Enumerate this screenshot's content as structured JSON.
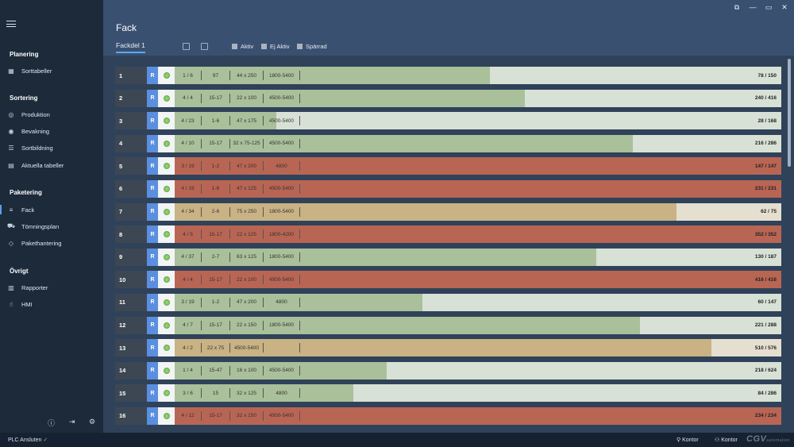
{
  "colors": {
    "green_fill": "#a9c09a",
    "green_bg": "#d8e1d5",
    "red_fill": "#b96554",
    "red_bg": "#b96554",
    "tan_fill": "#c9b283",
    "tan_bg": "#e5dfd0"
  },
  "sidebar": {
    "sections": [
      {
        "title": "Planering",
        "items": [
          {
            "label": "Sorttabeller",
            "icon": "table-icon"
          }
        ]
      },
      {
        "title": "Sortering",
        "items": [
          {
            "label": "Produktion",
            "icon": "check-circle-icon"
          },
          {
            "label": "Bevakning",
            "icon": "eye-icon"
          },
          {
            "label": "Sortbildning",
            "icon": "sort-icon"
          },
          {
            "label": "Aktuella tabeller",
            "icon": "tables-icon"
          }
        ]
      },
      {
        "title": "Paketering",
        "items": [
          {
            "label": "Fack",
            "icon": "list-icon"
          },
          {
            "label": "Tömningsplan",
            "icon": "truck-icon"
          },
          {
            "label": "Pakethantering",
            "icon": "package-icon"
          }
        ]
      },
      {
        "title": "Övrigt",
        "items": [
          {
            "label": "Rapporter",
            "icon": "report-icon"
          },
          {
            "label": "HMI",
            "icon": "hand-icon"
          }
        ]
      }
    ]
  },
  "header": {
    "title": "Fack",
    "tab": "Fackdel 1",
    "legend": [
      "Aktiv",
      "Ej Aktiv",
      "Spärrad"
    ]
  },
  "rows": [
    {
      "num": "1",
      "r": "R",
      "c1": "1 / 6",
      "c2": "97",
      "c3": "44 x 250",
      "c4": "1800-5400",
      "count": "78 / 150",
      "status": "green",
      "fill": 0.52
    },
    {
      "num": "2",
      "r": "R",
      "c1": "4 / 4",
      "c2": "15-17",
      "c3": "22 x 100",
      "c4": "4500-5400",
      "count": "240 / 416",
      "status": "green",
      "fill": 0.577
    },
    {
      "num": "3",
      "r": "R",
      "c1": "4 / 23",
      "c2": "1-6",
      "c3": "47 x 175",
      "c4": "4500-5400",
      "count": "28 / 168",
      "status": "green",
      "fill": 0.167
    },
    {
      "num": "4",
      "r": "R",
      "c1": "4 / 10",
      "c2": "15-17",
      "c3": "32 x 75-125",
      "c4": "4500-5400",
      "count": "216 / 286",
      "status": "green",
      "fill": 0.755
    },
    {
      "num": "5",
      "r": "R",
      "c1": "3 / 19",
      "c2": "1-2",
      "c3": "47 x 200",
      "c4": "4800",
      "count": "147 / 147",
      "status": "red",
      "fill": 1.0
    },
    {
      "num": "6",
      "r": "R",
      "c1": "4 / 19",
      "c2": "1-6",
      "c3": "47 x 125",
      "c4": "4500-5400",
      "count": "231 / 231",
      "status": "red",
      "fill": 1.0
    },
    {
      "num": "7",
      "r": "R",
      "c1": "4 / 34",
      "c2": "2-6",
      "c3": "75 x 250",
      "c4": "1800-5400",
      "count": "62 / 75",
      "status": "tan",
      "fill": 0.827
    },
    {
      "num": "8",
      "r": "R",
      "c1": "4 / 5",
      "c2": "15-17",
      "c3": "22 x 125",
      "c4": "1800-4200",
      "count": "352 / 352",
      "status": "red",
      "fill": 1.0
    },
    {
      "num": "9",
      "r": "R",
      "c1": "4 / 37",
      "c2": "2-7",
      "c3": "63 x 125",
      "c4": "1800-5400",
      "count": "130 / 187",
      "status": "green",
      "fill": 0.695
    },
    {
      "num": "10",
      "r": "R",
      "c1": "4 / 4",
      "c2": "15-17",
      "c3": "22 x 100",
      "c4": "4500-5400",
      "count": "416 / 416",
      "status": "red",
      "fill": 1.0
    },
    {
      "num": "11",
      "r": "R",
      "c1": "3 / 19",
      "c2": "1-2",
      "c3": "47 x 200",
      "c4": "4800",
      "count": "60 / 147",
      "status": "green",
      "fill": 0.408
    },
    {
      "num": "12",
      "r": "R",
      "c1": "4 / 7",
      "c2": "15-17",
      "c3": "22 x 150",
      "c4": "1800-5400",
      "count": "221 / 288",
      "status": "green",
      "fill": 0.767
    },
    {
      "num": "13",
      "r": "R",
      "c1": "4 / 2",
      "c2": "22 x 75",
      "c3": "4500-5400",
      "c4": "",
      "count": "510 / 576",
      "status": "tan",
      "fill": 0.885
    },
    {
      "num": "14",
      "r": "R",
      "c1": "1 / 4",
      "c2": "15-47",
      "c3": "16 x 100",
      "c4": "4500-5400",
      "count": "218 / 624",
      "status": "green",
      "fill": 0.349
    },
    {
      "num": "15",
      "r": "R",
      "c1": "3 / 6",
      "c2": "15",
      "c3": "32 x 125",
      "c4": "4800",
      "count": "84 / 286",
      "status": "green",
      "fill": 0.294
    },
    {
      "num": "16",
      "r": "R",
      "c1": "4 / 12",
      "c2": "15-17",
      "c3": "32 x 150",
      "c4": "4500-5400",
      "count": "234 / 234",
      "status": "red",
      "fill": 1.0
    }
  ],
  "statusbar": {
    "plc": "PLC Ansluten",
    "location": "Kontor",
    "account": "Kontor",
    "logo": "CGV",
    "logo_sub": "automation"
  }
}
